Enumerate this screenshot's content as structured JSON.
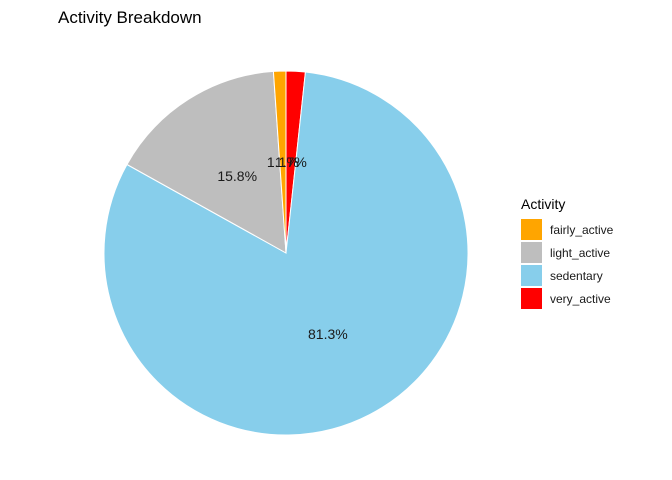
{
  "chart_data": {
    "type": "pie",
    "title": "Activity Breakdown",
    "legend": {
      "title": "Activity",
      "placement": "right"
    },
    "slices": [
      {
        "label": "fairly_active",
        "value": 1.1,
        "value_label": "1.1%",
        "color": "#FFA500"
      },
      {
        "label": "light_active",
        "value": 15.8,
        "value_label": "15.8%",
        "color": "#BEBEBE"
      },
      {
        "label": "sedentary",
        "value": 81.3,
        "value_label": "81.3%",
        "color": "#87CEEB"
      },
      {
        "label": "very_active",
        "value": 1.7,
        "value_label": "1.7%",
        "color": "#FF0000"
      }
    ]
  }
}
